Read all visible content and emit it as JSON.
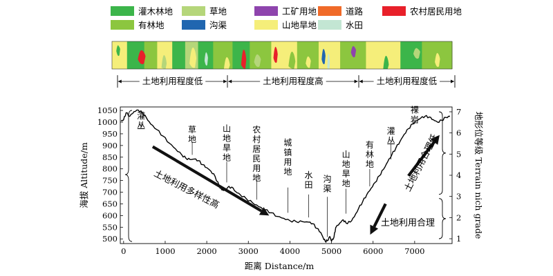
{
  "legend": [
    {
      "label": "灌木林地",
      "color": "#3cb54a"
    },
    {
      "label": "草地",
      "color": "#b5d67a"
    },
    {
      "label": "工矿用地",
      "color": "#8e44ad"
    },
    {
      "label": "道路",
      "color": "#f06a28"
    },
    {
      "label": "农村居民用地",
      "color": "#e8202a"
    },
    {
      "label": "有林地",
      "color": "#8cc63f"
    },
    {
      "label": "沟渠",
      "color": "#2066b0"
    },
    {
      "label": "山地旱地",
      "color": "#f5ee7a"
    },
    {
      "label": "水田",
      "color": "#c3e6d3"
    }
  ],
  "landuse_strip": {
    "segments": [
      {
        "from": 0,
        "to": 350,
        "color": "#f5ee7a"
      },
      {
        "from": 350,
        "to": 750,
        "color": "#3cb54a"
      },
      {
        "from": 750,
        "to": 1050,
        "color": "#8cc63f"
      },
      {
        "from": 1050,
        "to": 1400,
        "color": "#f5ee7a"
      },
      {
        "from": 1400,
        "to": 1700,
        "color": "#3cb54a"
      },
      {
        "from": 1700,
        "to": 2000,
        "color": "#b5d67a"
      },
      {
        "from": 2000,
        "to": 2350,
        "color": "#3cb54a"
      },
      {
        "from": 2350,
        "to": 2800,
        "color": "#8cc63f"
      },
      {
        "from": 2800,
        "to": 3200,
        "color": "#3cb54a"
      },
      {
        "from": 3200,
        "to": 3700,
        "color": "#8cc63f"
      },
      {
        "from": 3700,
        "to": 4300,
        "color": "#f5ee7a"
      },
      {
        "from": 4300,
        "to": 4800,
        "color": "#8cc63f"
      },
      {
        "from": 4800,
        "to": 5300,
        "color": "#f5ee7a"
      },
      {
        "from": 5300,
        "to": 5900,
        "color": "#8cc63f"
      },
      {
        "from": 5900,
        "to": 6700,
        "color": "#f5ee7a"
      },
      {
        "from": 6700,
        "to": 7200,
        "color": "#3cb54a"
      },
      {
        "from": 7200,
        "to": 7900,
        "color": "#8cc63f"
      }
    ],
    "patches": [
      {
        "x": 100,
        "w": 90,
        "color": "#3cb54a"
      },
      {
        "x": 600,
        "w": 180,
        "color": "#e8202a"
      },
      {
        "x": 1150,
        "w": 120,
        "color": "#b5d67a"
      },
      {
        "x": 1800,
        "w": 160,
        "color": "#f5ee7a"
      },
      {
        "x": 2150,
        "w": 80,
        "color": "#c3e6d3"
      },
      {
        "x": 2600,
        "w": 140,
        "color": "#f5ee7a"
      },
      {
        "x": 3000,
        "w": 120,
        "color": "#e8202a"
      },
      {
        "x": 3300,
        "w": 160,
        "color": "#b5d67a"
      },
      {
        "x": 3750,
        "w": 100,
        "color": "#e8202a"
      },
      {
        "x": 4100,
        "w": 160,
        "color": "#8cc63f"
      },
      {
        "x": 4500,
        "w": 120,
        "color": "#f5ee7a"
      },
      {
        "x": 4870,
        "w": 90,
        "color": "#2066b0"
      },
      {
        "x": 5000,
        "w": 60,
        "color": "#c3e6d3"
      },
      {
        "x": 5550,
        "w": 120,
        "color": "#8e44ad"
      },
      {
        "x": 5900,
        "w": 140,
        "color": "#f5ee7a"
      },
      {
        "x": 6300,
        "w": 130,
        "color": "#3cb54a"
      },
      {
        "x": 7000,
        "w": 160,
        "color": "#b5d67a"
      },
      {
        "x": 7500,
        "w": 120,
        "color": "#f5ee7a"
      }
    ]
  },
  "intensity_bands": [
    {
      "label": "土地利用程度低",
      "from": -150,
      "to": 2500
    },
    {
      "label": "土地利用程度高",
      "from": 2500,
      "to": 5650
    },
    {
      "label": "土地利用程度低",
      "from": 5650,
      "to": 8150
    }
  ],
  "profile": {
    "y_axis_label": "海拔 Altitude/m",
    "y2_axis_label": "地形位等级 Terrain nich grade",
    "x_axis_label": "距离 Distance/m",
    "y_ticks": [
      500,
      550,
      600,
      650,
      700,
      750,
      800,
      850,
      900,
      950,
      1000,
      1050
    ],
    "x_ticks": [
      0,
      1000,
      2000,
      3000,
      4000,
      5000,
      6000,
      7000
    ],
    "grade_ticks": [
      1,
      2,
      3,
      4,
      5,
      6,
      7
    ],
    "xlim": [
      -80,
      7900
    ],
    "ylim": [
      480,
      1065
    ],
    "curve": [
      [
        -60,
        1005
      ],
      [
        0,
        1010
      ],
      [
        60,
        1040
      ],
      [
        150,
        1025
      ],
      [
        250,
        1045
      ],
      [
        350,
        1052
      ],
      [
        450,
        1040
      ],
      [
        550,
        1018
      ],
      [
        650,
        992
      ],
      [
        800,
        968
      ],
      [
        950,
        940
      ],
      [
        1100,
        910
      ],
      [
        1250,
        885
      ],
      [
        1400,
        860
      ],
      [
        1500,
        845
      ],
      [
        1600,
        840
      ],
      [
        1700,
        842
      ],
      [
        1800,
        835
      ],
      [
        1900,
        818
      ],
      [
        2000,
        805
      ],
      [
        2100,
        790
      ],
      [
        2200,
        768
      ],
      [
        2300,
        725
      ],
      [
        2360,
        710
      ],
      [
        2420,
        708
      ],
      [
        2500,
        720
      ],
      [
        2600,
        722
      ],
      [
        2700,
        702
      ],
      [
        2800,
        690
      ],
      [
        2950,
        672
      ],
      [
        3100,
        655
      ],
      [
        3250,
        638
      ],
      [
        3400,
        625
      ],
      [
        3550,
        612
      ],
      [
        3700,
        596
      ],
      [
        3850,
        588
      ],
      [
        4000,
        578
      ],
      [
        4150,
        574
      ],
      [
        4300,
        574
      ],
      [
        4450,
        572
      ],
      [
        4550,
        565
      ],
      [
        4650,
        545
      ],
      [
        4740,
        528
      ],
      [
        4800,
        505
      ],
      [
        4850,
        490
      ],
      [
        4900,
        492
      ],
      [
        4960,
        510
      ],
      [
        5000,
        490
      ],
      [
        5060,
        508
      ],
      [
        5100,
        548
      ],
      [
        5200,
        568
      ],
      [
        5280,
        582
      ],
      [
        5350,
        568
      ],
      [
        5450,
        572
      ],
      [
        5550,
        595
      ],
      [
        5650,
        630
      ],
      [
        5750,
        660
      ],
      [
        5850,
        690
      ],
      [
        5950,
        716
      ],
      [
        6050,
        742
      ],
      [
        6150,
        770
      ],
      [
        6250,
        798
      ],
      [
        6350,
        830
      ],
      [
        6450,
        860
      ],
      [
        6550,
        890
      ],
      [
        6650,
        918
      ],
      [
        6750,
        948
      ],
      [
        6850,
        972
      ],
      [
        6950,
        992
      ],
      [
        7050,
        1006
      ],
      [
        7150,
        1018
      ],
      [
        7250,
        1025
      ],
      [
        7350,
        1022
      ],
      [
        7450,
        1010
      ],
      [
        7550,
        1000
      ],
      [
        7650,
        1008
      ],
      [
        7750,
        1020
      ],
      [
        7850,
        1025
      ]
    ],
    "curve_labels": [
      {
        "text": "灌丛",
        "x": 420,
        "y": 1015,
        "leader_y1": 1000,
        "leader_y2": 975
      },
      {
        "text": "草地",
        "x": 1650,
        "y": 955,
        "leader_y1": 915,
        "leader_y2": 860
      },
      {
        "text": "山地旱地",
        "x": 2480,
        "y": 960,
        "leader_y1": 830,
        "leader_y2": 742
      },
      {
        "text": "农村居民用地",
        "x": 3200,
        "y": 955,
        "leader_y1": 755,
        "leader_y2": 668
      },
      {
        "text": "城镇用地",
        "x": 3950,
        "y": 900,
        "leader_y1": 720,
        "leader_y2": 612
      },
      {
        "text": "水田",
        "x": 4450,
        "y": 760,
        "leader_y1": 690,
        "leader_y2": 592
      },
      {
        "text": "沟渠",
        "x": 4900,
        "y": 745,
        "leader_y1": 680,
        "leader_y2": 508
      },
      {
        "text": "山地旱地",
        "x": 5350,
        "y": 850,
        "leader_y1": 715,
        "leader_y2": 608
      },
      {
        "text": "有林地",
        "x": 5920,
        "y": 890,
        "leader_y1": 800,
        "leader_y2": 725
      },
      {
        "text": "灌丛",
        "x": 6430,
        "y": 950,
        "leader_y1": 905,
        "leader_y2": 840
      },
      {
        "text": "裸岩",
        "x": 7000,
        "y": 1040,
        "leader_y1": 1000,
        "leader_y2": 1004
      }
    ],
    "arrows": [
      {
        "text": "土地利用多样性高",
        "from": [
          700,
          895
        ],
        "to": [
          3500,
          600
        ]
      },
      {
        "text": "土地利用合理低",
        "from": [
          6850,
          770
        ],
        "to": [
          7600,
          945
        ]
      },
      {
        "text": "土地利用合理",
        "from": [
          6300,
          650
        ],
        "to": [
          5930,
          518
        ]
      }
    ]
  }
}
